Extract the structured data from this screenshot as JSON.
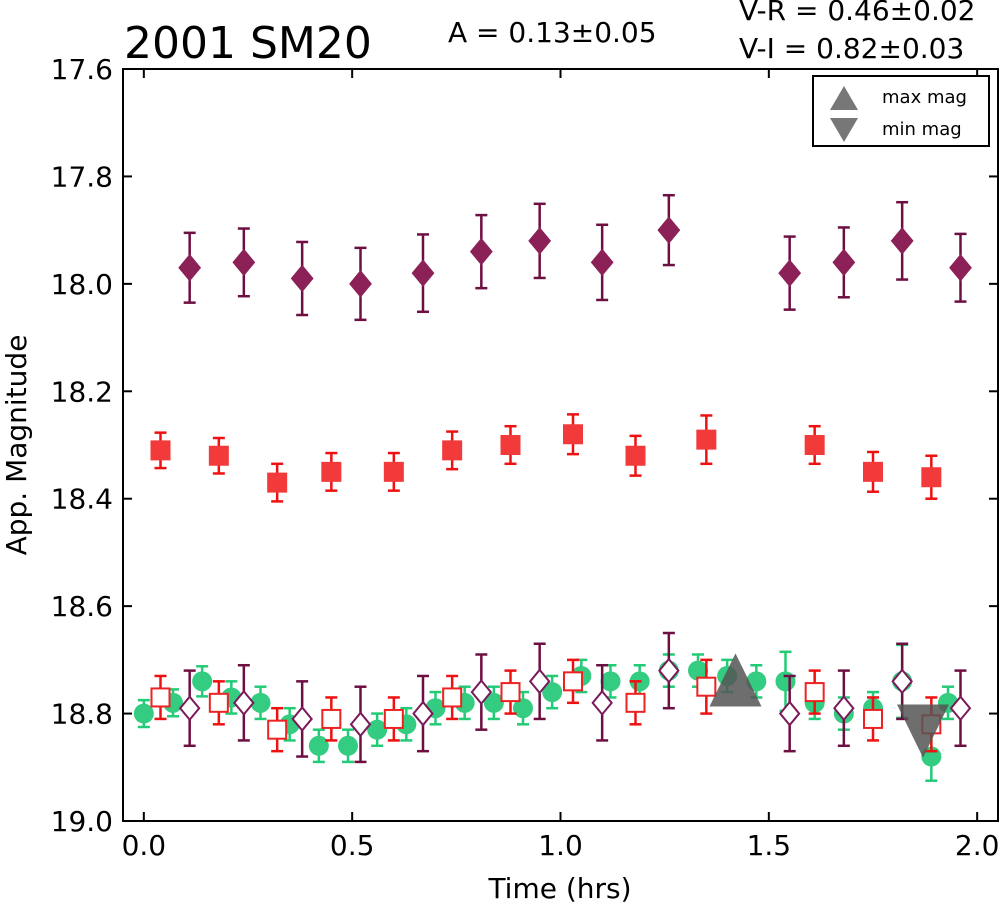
{
  "chart_data": {
    "type": "scatter",
    "title": "2001 SM20",
    "annotations": {
      "amplitude": "A  = 0.13±0.05",
      "color_vr": "V-R = 0.46±0.02",
      "color_vi": "V-I  = 0.82±0.03"
    },
    "xlabel": "Time (hrs)",
    "ylabel": "App. Magnitude",
    "xlim": [
      -0.05,
      2.05
    ],
    "ylim": [
      19.0,
      17.6
    ],
    "y_inverted": true,
    "xticks": [
      0.0,
      0.5,
      1.0,
      1.5,
      2.0
    ],
    "xtick_labels": [
      "0.0",
      "0.5",
      "1.0",
      "1.5",
      "2.0"
    ],
    "yticks": [
      17.6,
      17.8,
      18.0,
      18.2,
      18.4,
      18.6,
      18.8,
      19.0
    ],
    "ytick_labels": [
      "17.6",
      "17.8",
      "18.0",
      "18.2",
      "18.4",
      "18.6",
      "18.8",
      "19.0"
    ],
    "grid": false,
    "legend": {
      "placement": "top-right",
      "entries": [
        {
          "label": "max mag",
          "marker": "triangle-up",
          "color": "#777777"
        },
        {
          "label": "min mag",
          "marker": "triangle-down",
          "color": "#777777"
        }
      ]
    },
    "series": [
      {
        "marker": "diamond",
        "filled": true,
        "color": "#8b2156",
        "errcolor": "#6e0f42",
        "size": 12,
        "points": [
          {
            "x": 0.11,
            "y": 17.97,
            "err": 0.065
          },
          {
            "x": 0.24,
            "y": 17.96,
            "err": 0.063
          },
          {
            "x": 0.38,
            "y": 17.99,
            "err": 0.068
          },
          {
            "x": 0.52,
            "y": 18.0,
            "err": 0.067
          },
          {
            "x": 0.67,
            "y": 17.98,
            "err": 0.072
          },
          {
            "x": 0.81,
            "y": 17.94,
            "err": 0.068
          },
          {
            "x": 0.95,
            "y": 17.92,
            "err": 0.069
          },
          {
            "x": 1.1,
            "y": 17.96,
            "err": 0.07
          },
          {
            "x": 1.26,
            "y": 17.9,
            "err": 0.065
          },
          {
            "x": 1.55,
            "y": 17.98,
            "err": 0.068
          },
          {
            "x": 1.68,
            "y": 17.96,
            "err": 0.065
          },
          {
            "x": 1.82,
            "y": 17.92,
            "err": 0.072
          },
          {
            "x": 1.96,
            "y": 17.97,
            "err": 0.063
          }
        ]
      },
      {
        "marker": "square",
        "filled": true,
        "color": "#f23a3a",
        "errcolor": "#ee1111",
        "size": 10,
        "points": [
          {
            "x": 0.04,
            "y": 18.31,
            "err": 0.033
          },
          {
            "x": 0.18,
            "y": 18.32,
            "err": 0.033
          },
          {
            "x": 0.32,
            "y": 18.37,
            "err": 0.035
          },
          {
            "x": 0.45,
            "y": 18.35,
            "err": 0.035
          },
          {
            "x": 0.6,
            "y": 18.35,
            "err": 0.035
          },
          {
            "x": 0.74,
            "y": 18.31,
            "err": 0.035
          },
          {
            "x": 0.88,
            "y": 18.3,
            "err": 0.035
          },
          {
            "x": 1.03,
            "y": 18.28,
            "err": 0.037
          },
          {
            "x": 1.18,
            "y": 18.32,
            "err": 0.037
          },
          {
            "x": 1.35,
            "y": 18.29,
            "err": 0.045
          },
          {
            "x": 1.61,
            "y": 18.3,
            "err": 0.035
          },
          {
            "x": 1.75,
            "y": 18.35,
            "err": 0.037
          },
          {
            "x": 1.89,
            "y": 18.36,
            "err": 0.04
          }
        ]
      },
      {
        "marker": "circle",
        "filled": true,
        "color": "#33cc80",
        "errcolor": "#22cc77",
        "size": 10,
        "points": [
          {
            "x": 0.0,
            "y": 18.8,
            "err": 0.025
          },
          {
            "x": 0.07,
            "y": 18.78,
            "err": 0.025
          },
          {
            "x": 0.14,
            "y": 18.74,
            "err": 0.028
          },
          {
            "x": 0.21,
            "y": 18.77,
            "err": 0.03
          },
          {
            "x": 0.28,
            "y": 18.78,
            "err": 0.03
          },
          {
            "x": 0.35,
            "y": 18.82,
            "err": 0.03
          },
          {
            "x": 0.42,
            "y": 18.86,
            "err": 0.03
          },
          {
            "x": 0.49,
            "y": 18.86,
            "err": 0.03
          },
          {
            "x": 0.56,
            "y": 18.83,
            "err": 0.03
          },
          {
            "x": 0.63,
            "y": 18.82,
            "err": 0.03
          },
          {
            "x": 0.7,
            "y": 18.79,
            "err": 0.03
          },
          {
            "x": 0.77,
            "y": 18.78,
            "err": 0.03
          },
          {
            "x": 0.84,
            "y": 18.78,
            "err": 0.03
          },
          {
            "x": 0.91,
            "y": 18.79,
            "err": 0.03
          },
          {
            "x": 0.98,
            "y": 18.76,
            "err": 0.03
          },
          {
            "x": 1.05,
            "y": 18.73,
            "err": 0.03
          },
          {
            "x": 1.12,
            "y": 18.74,
            "err": 0.03
          },
          {
            "x": 1.19,
            "y": 18.74,
            "err": 0.03
          },
          {
            "x": 1.26,
            "y": 18.72,
            "err": 0.03
          },
          {
            "x": 1.33,
            "y": 18.72,
            "err": 0.03
          },
          {
            "x": 1.4,
            "y": 18.73,
            "err": 0.03
          },
          {
            "x": 1.47,
            "y": 18.74,
            "err": 0.03
          },
          {
            "x": 1.54,
            "y": 18.74,
            "err": 0.055
          },
          {
            "x": 1.61,
            "y": 18.78,
            "err": 0.03
          },
          {
            "x": 1.68,
            "y": 18.8,
            "err": 0.03
          },
          {
            "x": 1.75,
            "y": 18.79,
            "err": 0.03
          },
          {
            "x": 1.82,
            "y": 18.74,
            "err": 0.068
          },
          {
            "x": 1.89,
            "y": 18.88,
            "err": 0.045
          },
          {
            "x": 1.93,
            "y": 18.78,
            "err": 0.03
          }
        ]
      },
      {
        "marker": "square",
        "filled": false,
        "color": "#ee2222",
        "errcolor": "#ee1111",
        "size": 9,
        "points": [
          {
            "x": 0.04,
            "y": 18.77,
            "err": 0.04
          },
          {
            "x": 0.18,
            "y": 18.78,
            "err": 0.04
          },
          {
            "x": 0.32,
            "y": 18.83,
            "err": 0.04
          },
          {
            "x": 0.45,
            "y": 18.81,
            "err": 0.04
          },
          {
            "x": 0.6,
            "y": 18.81,
            "err": 0.04
          },
          {
            "x": 0.74,
            "y": 18.77,
            "err": 0.04
          },
          {
            "x": 0.88,
            "y": 18.76,
            "err": 0.04
          },
          {
            "x": 1.03,
            "y": 18.74,
            "err": 0.04
          },
          {
            "x": 1.18,
            "y": 18.78,
            "err": 0.04
          },
          {
            "x": 1.35,
            "y": 18.75,
            "err": 0.05
          },
          {
            "x": 1.61,
            "y": 18.76,
            "err": 0.04
          },
          {
            "x": 1.75,
            "y": 18.81,
            "err": 0.04
          },
          {
            "x": 1.89,
            "y": 18.82,
            "err": 0.05
          }
        ]
      },
      {
        "marker": "diamond",
        "filled": false,
        "color": "#7a1a5a",
        "errcolor": "#6e0f42",
        "size": 10,
        "points": [
          {
            "x": 0.11,
            "y": 18.79,
            "err": 0.07
          },
          {
            "x": 0.24,
            "y": 18.78,
            "err": 0.07
          },
          {
            "x": 0.38,
            "y": 18.81,
            "err": 0.07
          },
          {
            "x": 0.52,
            "y": 18.82,
            "err": 0.07
          },
          {
            "x": 0.67,
            "y": 18.8,
            "err": 0.07
          },
          {
            "x": 0.81,
            "y": 18.76,
            "err": 0.07
          },
          {
            "x": 0.95,
            "y": 18.74,
            "err": 0.07
          },
          {
            "x": 1.1,
            "y": 18.78,
            "err": 0.07
          },
          {
            "x": 1.26,
            "y": 18.72,
            "err": 0.07
          },
          {
            "x": 1.55,
            "y": 18.8,
            "err": 0.07
          },
          {
            "x": 1.68,
            "y": 18.79,
            "err": 0.07
          },
          {
            "x": 1.82,
            "y": 18.74,
            "err": 0.07
          },
          {
            "x": 1.96,
            "y": 18.79,
            "err": 0.07
          }
        ]
      }
    ],
    "extrema": [
      {
        "label": "max mag",
        "marker": "triangle-up",
        "x": 1.42,
        "y": 18.74,
        "color": "#555555"
      },
      {
        "label": "min mag",
        "marker": "triangle-down",
        "x": 1.87,
        "y": 18.83,
        "color": "#555555"
      }
    ]
  }
}
